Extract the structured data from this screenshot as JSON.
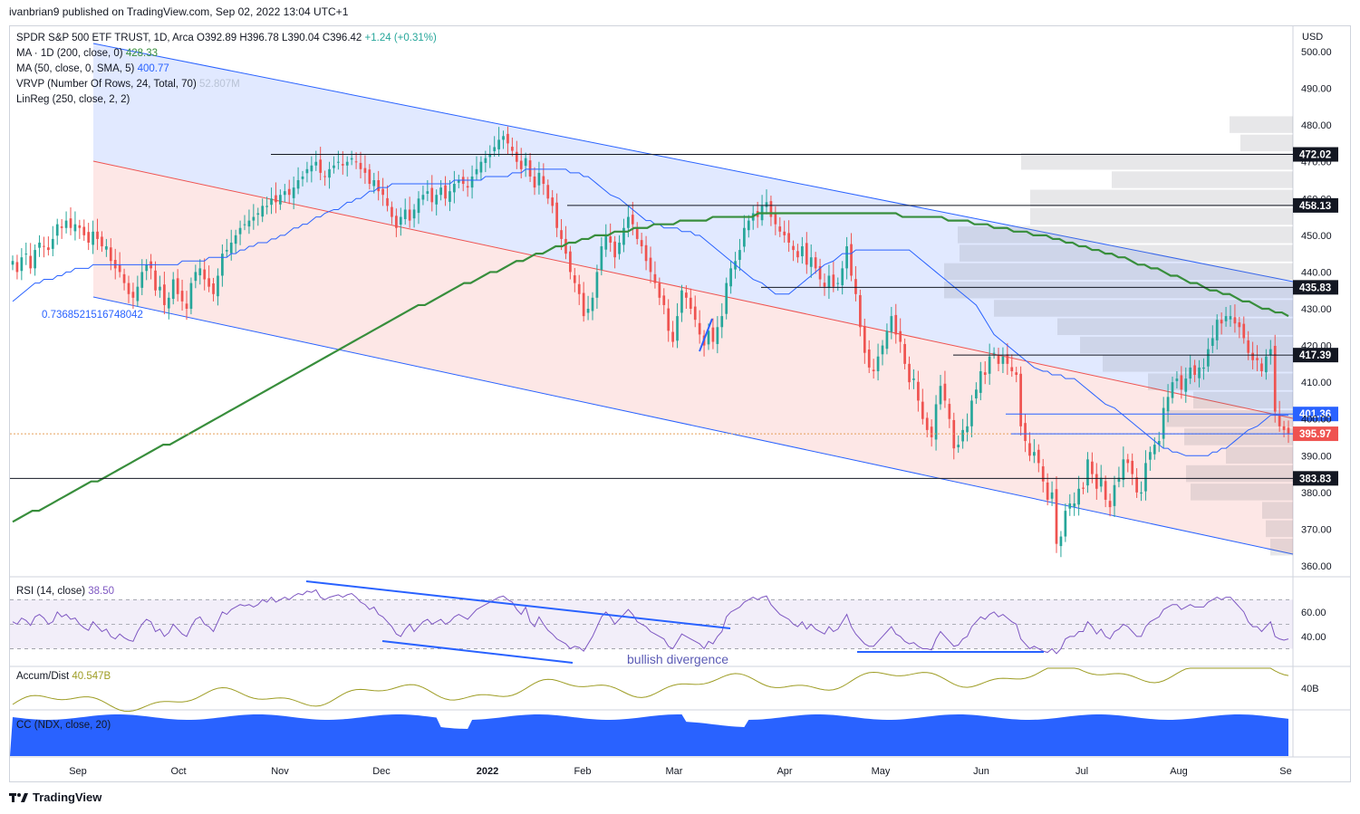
{
  "header": {
    "publisher": "ivanbrian9 published on TradingView.com, Sep 02, 2022 13:04 UTC+1"
  },
  "legend": {
    "symbol": "SPDR S&P 500 ETF TRUST, 1D, Arca",
    "open_label": "O",
    "open": "392.89",
    "high_label": "H",
    "high": "396.78",
    "low_label": "L",
    "low": "390.04",
    "close_label": "C",
    "close": "396.42",
    "change": "+1.24 (+0.31%)",
    "ma200_label": "MA · 1D (200, close, 0)",
    "ma200_value": "428.33",
    "ma50_label": "MA (50, close, 0, SMA, 5)",
    "ma50_value": "400.77",
    "vrvp_label": "VRVP (Number Of Rows, 24, Total, 70)",
    "vrvp_value": "52.807M",
    "linreg_label": "LinReg (250, close, 2, 2)",
    "linreg_value": "0.7368521516748042"
  },
  "rsi": {
    "label": "RSI (14, close)",
    "value": "38.50",
    "annotation": "bullish divergence",
    "ticks": [
      "60.00",
      "40.00"
    ]
  },
  "accum": {
    "label": "Accum/Dist",
    "value": "40.547B",
    "tick": "40B"
  },
  "cc": {
    "label": "CC (NDX, close, 20)"
  },
  "currency": "USD",
  "footer": {
    "brand": "TradingView"
  },
  "colors": {
    "up": "#26a69a",
    "down": "#ef5350",
    "ma200": "#388e3c",
    "ma50": "#2962ff",
    "channel": "#2962ff",
    "rsi": "#7e57c2",
    "accum": "#9e9d24",
    "cc": "#2962ff"
  },
  "chart_data": {
    "type": "candlestick",
    "ylim": [
      355,
      502
    ],
    "y_ticks": [
      360,
      370,
      380,
      390,
      400,
      410,
      420,
      430,
      440,
      450,
      460,
      470,
      480,
      490,
      500
    ],
    "y_tick_labels": [
      "360.00",
      "370.00",
      "380.00",
      "390.00",
      "400.00",
      "410.00",
      "420.00",
      "430.00",
      "440.00",
      "450.00",
      "460.00",
      "470.00",
      "480.00",
      "490.00",
      "500.00"
    ],
    "x_labels": [
      "Sep",
      "Oct",
      "Nov",
      "Dec",
      "2022",
      "Feb",
      "Mar",
      "Apr",
      "May",
      "Jun",
      "Jul",
      "Aug",
      "Se"
    ],
    "price_levels": [
      {
        "label": "472.02",
        "value": 472.02,
        "style": "black"
      },
      {
        "label": "458.13",
        "value": 458.13,
        "style": "black"
      },
      {
        "label": "435.83",
        "value": 435.83,
        "style": "black"
      },
      {
        "label": "417.39",
        "value": 417.39,
        "style": "black"
      },
      {
        "label": "401.36",
        "value": 401.36,
        "style": "blue"
      },
      {
        "label": "395.97",
        "value": 395.97,
        "style": "red"
      },
      {
        "label": "383.83",
        "value": 383.83,
        "style": "black"
      }
    ],
    "closes": [
      443,
      440,
      444,
      445,
      441,
      446,
      448,
      447,
      446,
      449,
      453,
      452,
      454,
      452,
      453,
      452,
      450,
      448,
      451,
      449,
      447,
      447,
      443,
      441,
      440,
      437,
      434,
      433,
      436,
      440,
      442,
      441,
      435,
      436,
      431,
      433,
      438,
      434,
      432,
      430,
      437,
      440,
      441,
      438,
      436,
      434,
      439,
      445,
      446,
      448,
      450,
      452,
      453,
      454,
      455,
      456,
      458,
      458,
      460,
      459,
      461,
      462,
      461,
      463,
      465,
      466,
      468,
      469,
      470,
      467,
      466,
      468,
      469,
      470,
      469,
      470,
      471,
      470,
      468,
      467,
      464,
      465,
      462,
      461,
      458,
      455,
      452,
      455,
      457,
      454,
      457,
      460,
      461,
      462,
      459,
      461,
      463,
      460,
      462,
      464,
      465,
      464,
      463,
      466,
      468,
      470,
      471,
      472,
      474,
      476,
      477,
      475,
      473,
      470,
      468,
      471,
      466,
      463,
      467,
      464,
      460,
      458,
      452,
      449,
      445,
      440,
      437,
      434,
      428,
      430,
      433,
      440,
      447,
      450,
      448,
      444,
      448,
      452,
      455,
      453,
      449,
      447,
      443,
      440,
      437,
      433,
      431,
      424,
      421,
      428,
      435,
      433,
      430,
      427,
      423,
      420,
      424,
      421,
      425,
      428,
      437,
      441,
      443,
      446,
      452,
      454,
      456,
      455,
      458,
      459,
      455,
      453,
      451,
      450,
      448,
      446,
      444,
      447,
      442,
      444,
      441,
      438,
      436,
      439,
      436,
      437,
      441,
      447,
      439,
      434,
      425,
      418,
      414,
      413,
      417,
      420,
      424,
      428,
      423,
      421,
      415,
      410,
      411,
      405,
      400,
      397,
      395,
      404,
      409,
      405,
      400,
      392,
      393,
      397,
      398,
      405,
      408,
      413,
      412,
      417,
      418,
      415,
      417,
      415,
      413,
      412,
      398,
      394,
      390,
      391,
      388,
      383,
      378,
      380,
      366,
      368,
      375,
      377,
      377,
      381,
      381,
      389,
      385,
      381,
      384,
      378,
      376,
      382,
      384,
      389,
      388,
      385,
      380,
      380,
      388,
      391,
      393,
      394,
      403,
      406,
      410,
      411,
      408,
      411,
      414,
      412,
      414,
      414,
      419,
      422,
      427,
      426,
      428,
      428,
      426,
      425,
      422,
      418,
      416,
      416,
      413,
      417,
      419,
      402,
      398,
      397,
      396
    ],
    "ma50": [
      432,
      433,
      434,
      435,
      436,
      437,
      437,
      438,
      438,
      439,
      439,
      440,
      440,
      441,
      441,
      441,
      441,
      442,
      442,
      442,
      442,
      442,
      442,
      442,
      442,
      442,
      442,
      442,
      442,
      442,
      442,
      442,
      442,
      442,
      442,
      442,
      443,
      443,
      443,
      443,
      443,
      444,
      444,
      444,
      444,
      444,
      445,
      445,
      446,
      446,
      447,
      447,
      448,
      448,
      449,
      449,
      450,
      450,
      451,
      452,
      452,
      453,
      453,
      454,
      455,
      455,
      456,
      457,
      457,
      458,
      459,
      459,
      460,
      460,
      461,
      462,
      462,
      463,
      463,
      463,
      464,
      464,
      464,
      464,
      464,
      464,
      464,
      464,
      464,
      464,
      464,
      464,
      464,
      465,
      465,
      465,
      465,
      465,
      465,
      466,
      466,
      466,
      466,
      466,
      466,
      467,
      467,
      467,
      468,
      468,
      468,
      468,
      468,
      468,
      468,
      468,
      468,
      467,
      467,
      467,
      466,
      466,
      465,
      464,
      463,
      462,
      461,
      460,
      459,
      458,
      457,
      456,
      455,
      454,
      454,
      453,
      453,
      452,
      452,
      452,
      452,
      451,
      451,
      450,
      450,
      449,
      448,
      447,
      446,
      445,
      444,
      443,
      442,
      441,
      440,
      439,
      438,
      437,
      436,
      435,
      434,
      434,
      434,
      434,
      435,
      436,
      437,
      438,
      439,
      440,
      441,
      442,
      443,
      444,
      445,
      445,
      445,
      446,
      446,
      446,
      446,
      446,
      446,
      446,
      446,
      446,
      446,
      446,
      446,
      445,
      444,
      443,
      442,
      441,
      440,
      439,
      438,
      437,
      436,
      435,
      434,
      432,
      431,
      429,
      427,
      425,
      423,
      422,
      421,
      420,
      419,
      418,
      417,
      416,
      415,
      414,
      413,
      413,
      412,
      412,
      412,
      411,
      411,
      411,
      410,
      409,
      408,
      407,
      406,
      405,
      404,
      403,
      402,
      401,
      400,
      399,
      398,
      397,
      396,
      395,
      394,
      393,
      392,
      392,
      391,
      391,
      390,
      390,
      390,
      390,
      390,
      390,
      391,
      391,
      392,
      392,
      393,
      394,
      395,
      396,
      397,
      398,
      399,
      400,
      401,
      401,
      401,
      401,
      401
    ],
    "ma200": [
      372,
      373,
      374,
      375,
      375,
      376,
      377,
      378,
      379,
      380,
      381,
      382,
      383,
      383,
      384,
      385,
      386,
      387,
      388,
      389,
      390,
      391,
      392,
      393,
      393,
      394,
      395,
      396,
      397,
      398,
      399,
      400,
      401,
      402,
      403,
      404,
      405,
      406,
      407,
      408,
      409,
      410,
      411,
      412,
      413,
      414,
      415,
      416,
      417,
      418,
      419,
      420,
      421,
      422,
      423,
      424,
      425,
      426,
      427,
      428,
      429,
      430,
      431,
      431,
      432,
      433,
      434,
      435,
      436,
      437,
      437,
      438,
      439,
      440,
      440,
      441,
      442,
      443,
      443,
      444,
      445,
      445,
      446,
      447,
      447,
      448,
      448,
      449,
      449,
      450,
      450,
      450,
      451,
      451,
      451,
      452,
      452,
      452,
      453,
      453,
      453,
      453,
      454,
      454,
      454,
      454,
      454,
      455,
      455,
      455,
      455,
      455,
      455,
      455,
      456,
      456,
      456,
      456,
      456,
      456,
      456,
      456,
      456,
      456,
      456,
      456,
      456,
      456,
      456,
      456,
      456,
      456,
      456,
      456,
      456,
      456,
      455,
      455,
      455,
      455,
      455,
      455,
      455,
      454,
      454,
      454,
      454,
      453,
      453,
      453,
      452,
      452,
      452,
      451,
      451,
      451,
      450,
      450,
      450,
      449,
      449,
      448,
      448,
      447,
      447,
      446,
      446,
      445,
      445,
      444,
      444,
      443,
      442,
      442,
      441,
      441,
      440,
      439,
      439,
      438,
      437,
      437,
      436,
      435,
      435,
      434,
      434,
      433,
      432,
      432,
      431,
      430,
      430,
      429,
      429,
      428
    ],
    "rsi_values": [
      52,
      50,
      55,
      53,
      49,
      56,
      58,
      55,
      50,
      52,
      60,
      56,
      58,
      54,
      55,
      50,
      47,
      45,
      52,
      48,
      44,
      46,
      40,
      38,
      42,
      39,
      37,
      36,
      44,
      50,
      54,
      52,
      44,
      46,
      40,
      43,
      50,
      46,
      42,
      40,
      48,
      54,
      56,
      50,
      48,
      44,
      52,
      60,
      58,
      62,
      64,
      66,
      65,
      66,
      64,
      66,
      70,
      68,
      72,
      68,
      70,
      72,
      70,
      73,
      75,
      74,
      77,
      76,
      78,
      72,
      70,
      72,
      73,
      74,
      72,
      74,
      75,
      72,
      68,
      66,
      62,
      64,
      58,
      56,
      52,
      48,
      42,
      40,
      46,
      50,
      44,
      48,
      52,
      54,
      50,
      52,
      54,
      50,
      52,
      56,
      58,
      56,
      54,
      58,
      62,
      64,
      66,
      68,
      70,
      72,
      73,
      70,
      68,
      62,
      58,
      64,
      52,
      48,
      56,
      50,
      45,
      42,
      38,
      36,
      34,
      30,
      32,
      31,
      28,
      34,
      40,
      48,
      56,
      60,
      56,
      50,
      54,
      58,
      62,
      58,
      52,
      50,
      48,
      44,
      42,
      40,
      38,
      32,
      30,
      36,
      42,
      40,
      38,
      36,
      34,
      30,
      36,
      34,
      40,
      44,
      56,
      60,
      62,
      64,
      68,
      70,
      72,
      70,
      72,
      73,
      66,
      62,
      58,
      56,
      54,
      50,
      48,
      52,
      46,
      50,
      46,
      44,
      42,
      48,
      44,
      46,
      52,
      58,
      48,
      42,
      38,
      34,
      32,
      32,
      36,
      40,
      44,
      48,
      42,
      40,
      36,
      34,
      35,
      32,
      30,
      30,
      29,
      38,
      44,
      40,
      36,
      32,
      33,
      38,
      40,
      48,
      52,
      56,
      54,
      58,
      60,
      56,
      58,
      55,
      52,
      50,
      38,
      34,
      30,
      32,
      30,
      28,
      27,
      30,
      26,
      30,
      38,
      40,
      40,
      44,
      44,
      52,
      48,
      42,
      46,
      40,
      38,
      44,
      46,
      50,
      48,
      44,
      40,
      40,
      48,
      52,
      54,
      56,
      62,
      64,
      66,
      66,
      62,
      64,
      66,
      64,
      64,
      64,
      68,
      70,
      72,
      70,
      72,
      72,
      68,
      64,
      60,
      52,
      48,
      48,
      44,
      48,
      52,
      40,
      38,
      37,
      38
    ]
  }
}
